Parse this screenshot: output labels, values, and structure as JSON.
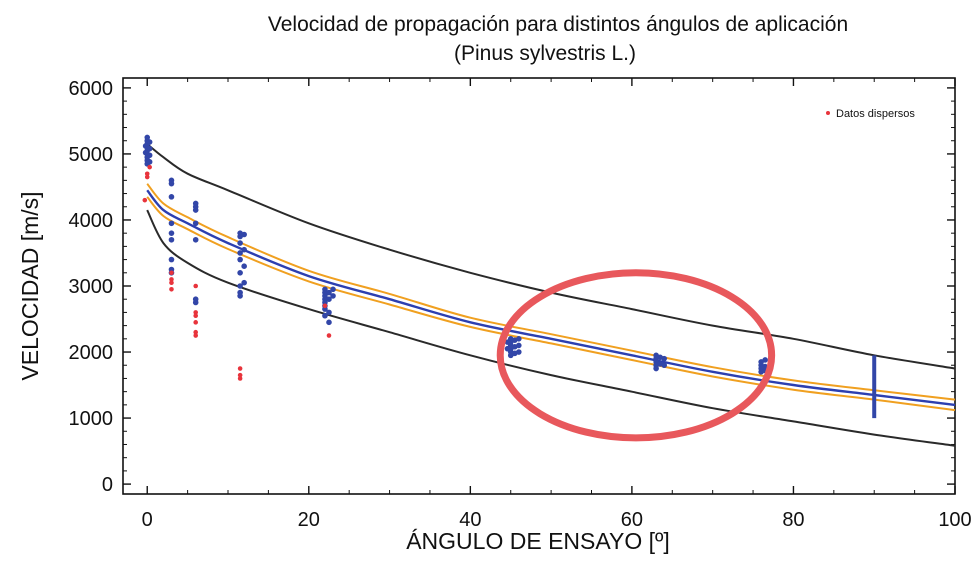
{
  "chart_data": {
    "type": "scatter",
    "title": "Velocidad de propagación para distintos ángulos de aplicación",
    "subtitle": "(Pinus sylvestris L.)",
    "xlabel": "ÁNGULO DE ENSAYO [º]",
    "ylabel": "VELOCIDAD [m/s]",
    "xlim": [
      -3,
      100
    ],
    "ylim": [
      -150,
      6150
    ],
    "xticks": [
      0,
      20,
      40,
      60,
      80,
      100
    ],
    "yticks": [
      0,
      1000,
      2000,
      3000,
      4000,
      5000,
      6000
    ],
    "xtick_labels": [
      "0",
      "20",
      "40",
      "60",
      "80",
      "100"
    ],
    "ytick_labels": [
      "0",
      "1000",
      "2000",
      "3000",
      "4000",
      "5000",
      "6000"
    ],
    "grid": false,
    "legend": {
      "position": "top-right",
      "entries": [
        {
          "label": "Datos dispersos",
          "color": "#e8343c",
          "marker": "dot"
        }
      ]
    },
    "colors": {
      "data_points": "#3246a8",
      "outliers": "#e8343c",
      "fit_line": "#2c3fb0",
      "confidence_band": "#f0a020",
      "prediction_band": "#2a2a2a",
      "highlight_ellipse": "#e8585c"
    },
    "series": [
      {
        "kind": "points",
        "color": "#3246a8",
        "points": [
          [
            0,
            5250
          ],
          [
            0,
            5200
          ],
          [
            0,
            5150
          ],
          [
            0,
            5100
          ],
          [
            0,
            5050
          ],
          [
            0,
            5000
          ],
          [
            0,
            4950
          ],
          [
            0,
            4900
          ],
          [
            0,
            4850
          ],
          [
            0.3,
            5180
          ],
          [
            0.3,
            5080
          ],
          [
            0.3,
            4980
          ],
          [
            0.3,
            4880
          ],
          [
            -0.2,
            5120
          ],
          [
            -0.2,
            5020
          ],
          [
            3,
            4600
          ],
          [
            3,
            4550
          ],
          [
            3,
            4350
          ],
          [
            3,
            3950
          ],
          [
            3,
            3800
          ],
          [
            3,
            3700
          ],
          [
            3,
            3400
          ],
          [
            3,
            3250
          ],
          [
            3,
            3200
          ],
          [
            6,
            4250
          ],
          [
            6,
            4200
          ],
          [
            6,
            4150
          ],
          [
            6,
            3950
          ],
          [
            6,
            3700
          ],
          [
            6,
            2800
          ],
          [
            6,
            2750
          ],
          [
            11.5,
            3800
          ],
          [
            11.5,
            3750
          ],
          [
            11.5,
            3650
          ],
          [
            11.5,
            3500
          ],
          [
            11.5,
            3400
          ],
          [
            11.5,
            3200
          ],
          [
            11.5,
            3000
          ],
          [
            11.5,
            2900
          ],
          [
            11.5,
            2850
          ],
          [
            12,
            3780
          ],
          [
            12,
            3550
          ],
          [
            12,
            3300
          ],
          [
            12,
            3050
          ],
          [
            22,
            2950
          ],
          [
            22,
            2900
          ],
          [
            22,
            2850
          ],
          [
            22,
            2800
          ],
          [
            22,
            2750
          ],
          [
            22,
            2700
          ],
          [
            22,
            2650
          ],
          [
            22,
            2550
          ],
          [
            22.5,
            2900
          ],
          [
            22.5,
            2800
          ],
          [
            22.5,
            2600
          ],
          [
            22.5,
            2450
          ],
          [
            23,
            2950
          ],
          [
            23,
            2850
          ],
          [
            45,
            2200
          ],
          [
            45,
            2150
          ],
          [
            45,
            2100
          ],
          [
            45,
            2050
          ],
          [
            45,
            2000
          ],
          [
            45,
            1950
          ],
          [
            45.5,
            2180
          ],
          [
            45.5,
            2080
          ],
          [
            45.5,
            1980
          ],
          [
            46,
            2200
          ],
          [
            46,
            2100
          ],
          [
            46,
            2000
          ],
          [
            44.6,
            2150
          ],
          [
            44.6,
            2050
          ],
          [
            63,
            1950
          ],
          [
            63,
            1900
          ],
          [
            63,
            1850
          ],
          [
            63,
            1800
          ],
          [
            63,
            1750
          ],
          [
            63.5,
            1920
          ],
          [
            63.5,
            1820
          ],
          [
            64,
            1900
          ],
          [
            64,
            1800
          ],
          [
            76,
            1850
          ],
          [
            76,
            1800
          ],
          [
            76,
            1750
          ],
          [
            76,
            1700
          ],
          [
            76.5,
            1880
          ],
          [
            76.5,
            1780
          ],
          [
            76.5,
            1720
          ]
        ]
      },
      {
        "kind": "points",
        "name": "Datos dispersos",
        "color": "#e8343c",
        "points": [
          [
            0,
            4700
          ],
          [
            0,
            4650
          ],
          [
            -0.3,
            4300
          ],
          [
            0.3,
            4800
          ],
          [
            3,
            3200
          ],
          [
            3,
            3100
          ],
          [
            3,
            3050
          ],
          [
            3,
            2950
          ],
          [
            6,
            3000
          ],
          [
            6,
            2600
          ],
          [
            6,
            2550
          ],
          [
            6,
            2450
          ],
          [
            6,
            2300
          ],
          [
            6,
            2250
          ],
          [
            11.5,
            1750
          ],
          [
            11.5,
            1650
          ],
          [
            11.5,
            1600
          ],
          [
            22,
            2700
          ],
          [
            22.5,
            2250
          ]
        ]
      },
      {
        "kind": "range",
        "color": "#3246a8",
        "x": 90,
        "y": [
          1000,
          1950
        ]
      },
      {
        "kind": "line",
        "role": "fit",
        "color": "#2c3fb0",
        "points": [
          [
            0,
            4450
          ],
          [
            2,
            4150
          ],
          [
            5,
            3950
          ],
          [
            10,
            3650
          ],
          [
            20,
            3150
          ],
          [
            30,
            2800
          ],
          [
            40,
            2450
          ],
          [
            50,
            2200
          ],
          [
            60,
            1950
          ],
          [
            70,
            1700
          ],
          [
            80,
            1500
          ],
          [
            90,
            1350
          ],
          [
            100,
            1200
          ]
        ]
      },
      {
        "kind": "line",
        "role": "confidence-upper",
        "color": "#f0a020",
        "points": [
          [
            0,
            4550
          ],
          [
            2,
            4250
          ],
          [
            5,
            4040
          ],
          [
            10,
            3740
          ],
          [
            20,
            3230
          ],
          [
            30,
            2880
          ],
          [
            40,
            2520
          ],
          [
            50,
            2270
          ],
          [
            60,
            2020
          ],
          [
            70,
            1770
          ],
          [
            80,
            1570
          ],
          [
            90,
            1420
          ],
          [
            100,
            1280
          ]
        ]
      },
      {
        "kind": "line",
        "role": "confidence-lower",
        "color": "#f0a020",
        "points": [
          [
            0,
            4350
          ],
          [
            2,
            4060
          ],
          [
            5,
            3860
          ],
          [
            10,
            3560
          ],
          [
            20,
            3070
          ],
          [
            30,
            2720
          ],
          [
            40,
            2380
          ],
          [
            50,
            2130
          ],
          [
            60,
            1880
          ],
          [
            70,
            1630
          ],
          [
            80,
            1430
          ],
          [
            90,
            1280
          ],
          [
            100,
            1120
          ]
        ]
      },
      {
        "kind": "line",
        "role": "prediction-upper",
        "color": "#2a2a2a",
        "points": [
          [
            0,
            5150
          ],
          [
            2,
            4950
          ],
          [
            5,
            4700
          ],
          [
            10,
            4450
          ],
          [
            20,
            3950
          ],
          [
            30,
            3550
          ],
          [
            40,
            3200
          ],
          [
            50,
            2900
          ],
          [
            60,
            2650
          ],
          [
            70,
            2400
          ],
          [
            80,
            2200
          ],
          [
            90,
            1950
          ],
          [
            100,
            1750
          ]
        ]
      },
      {
        "kind": "line",
        "role": "prediction-lower",
        "color": "#2a2a2a",
        "points": [
          [
            0,
            4150
          ],
          [
            2,
            3650
          ],
          [
            5,
            3350
          ],
          [
            10,
            3050
          ],
          [
            20,
            2650
          ],
          [
            30,
            2300
          ],
          [
            40,
            1950
          ],
          [
            50,
            1650
          ],
          [
            60,
            1400
          ],
          [
            70,
            1150
          ],
          [
            80,
            950
          ],
          [
            90,
            750
          ],
          [
            100,
            580
          ]
        ]
      }
    ],
    "annotations": [
      {
        "type": "ellipse",
        "color": "#e8585c",
        "center": [
          60.5,
          1950
        ],
        "radii": [
          16.8,
          1250
        ]
      }
    ]
  }
}
